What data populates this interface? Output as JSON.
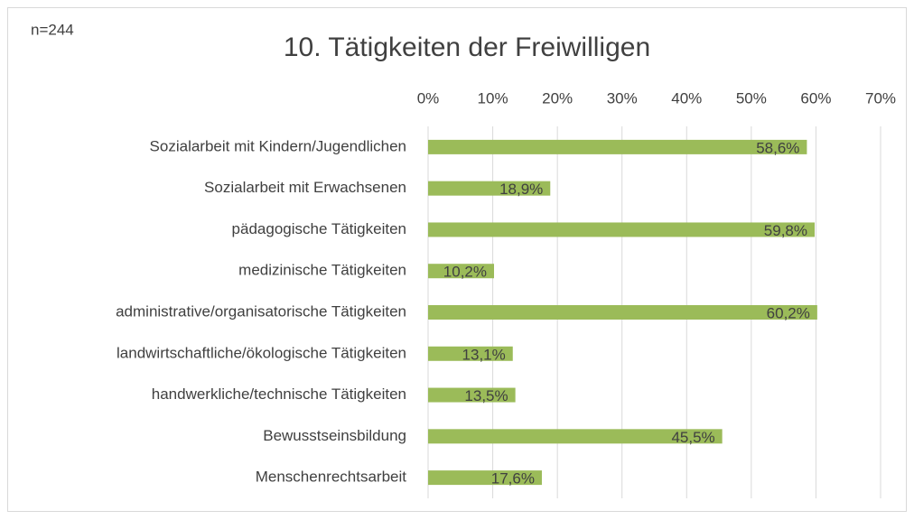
{
  "chart_data": {
    "type": "bar",
    "orientation": "horizontal",
    "title": "10. Tätigkeiten der Freiwilligen",
    "annotation": "n=244",
    "categories": [
      "Sozialarbeit mit Kindern/Jugendlichen",
      "Sozialarbeit mit Erwachsenen",
      "pädagogische Tätigkeiten",
      "medizinische Tätigkeiten",
      "administrative/organisatorische Tätigkeiten",
      "landwirtschaftliche/ökologische Tätigkeiten",
      "handwerkliche/technische Tätigkeiten",
      "Bewusstseinsbildung",
      "Menschenrechtsarbeit"
    ],
    "values": [
      58.6,
      18.9,
      59.8,
      10.2,
      60.2,
      13.1,
      13.5,
      45.5,
      17.6
    ],
    "value_labels": [
      "58,6%",
      "18,9%",
      "59,8%",
      "10,2%",
      "60,2%",
      "13,1%",
      "13,5%",
      "45,5%",
      "17,6%"
    ],
    "color": "#9bbb59",
    "xlim": [
      0,
      70
    ],
    "xticks": [
      {
        "value": 0,
        "label": "0%"
      },
      {
        "value": 10,
        "label": "10%"
      },
      {
        "value": 20,
        "label": "20%"
      },
      {
        "value": 30,
        "label": "30%"
      },
      {
        "value": 40,
        "label": "40%"
      },
      {
        "value": 50,
        "label": "50%"
      },
      {
        "value": 60,
        "label": "60%"
      },
      {
        "value": 70,
        "label": "70%"
      }
    ],
    "grid": true
  }
}
